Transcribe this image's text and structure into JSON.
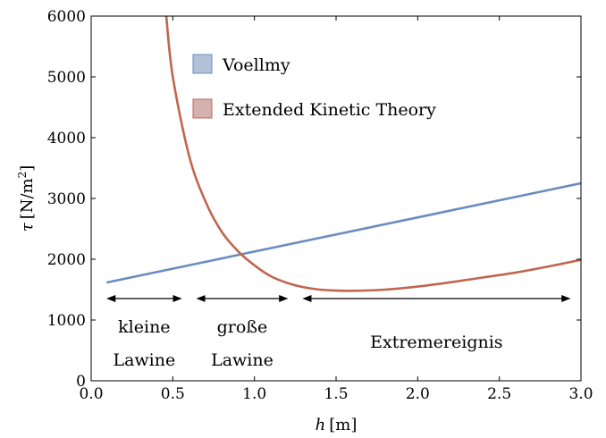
{
  "chart_data": {
    "type": "line",
    "xlabel_var": "h",
    "xlabel_unit": "[m]",
    "ylabel_var": "τ",
    "ylabel_unit": "[N/m",
    "ylabel_unit_sup": "2",
    "ylabel_unit_end": "]",
    "xlim": [
      0.0,
      3.0
    ],
    "ylim": [
      0,
      6000
    ],
    "x_ticks": [
      "0.0",
      "0.5",
      "1.0",
      "1.5",
      "2.0",
      "2.5",
      "3.0"
    ],
    "y_ticks": [
      "0",
      "1000",
      "2000",
      "3000",
      "4000",
      "5000",
      "6000"
    ],
    "legend_position": "upper-center",
    "series": [
      {
        "name": "Voellmy",
        "color": "#6b8cbf",
        "x": [
          0.1,
          3.0
        ],
        "y": [
          1620,
          3250
        ]
      },
      {
        "name": "Extended Kinetic Theory",
        "color": "#c0664f",
        "x": [
          0.46,
          0.5,
          0.6,
          0.7,
          0.8,
          0.9,
          1.0,
          1.1,
          1.2,
          1.3,
          1.4,
          1.5,
          1.6,
          1.8,
          2.0,
          2.2,
          2.4,
          2.6,
          2.8,
          3.0
        ],
        "y": [
          6000,
          5000,
          3700,
          2950,
          2450,
          2130,
          1900,
          1720,
          1610,
          1540,
          1500,
          1485,
          1480,
          1500,
          1550,
          1620,
          1700,
          1780,
          1880,
          1990
        ]
      }
    ],
    "annotations": [
      {
        "id": "kleine",
        "x0": 0.1,
        "x1": 0.55,
        "lines": [
          "kleine",
          "Lawine"
        ]
      },
      {
        "id": "grosse",
        "x0": 0.65,
        "x1": 1.2,
        "lines": [
          "große",
          "Lawine"
        ]
      },
      {
        "id": "extrem",
        "x0": 1.3,
        "x1": 2.93,
        "lines": [
          "Extremereignis"
        ]
      }
    ]
  }
}
